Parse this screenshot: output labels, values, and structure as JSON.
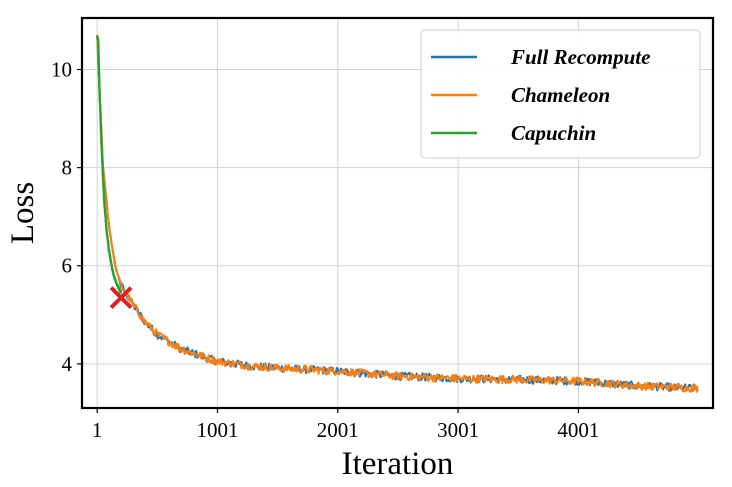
{
  "chart_data": {
    "type": "line",
    "title": "",
    "xlabel": "Iteration",
    "ylabel": "Loss",
    "xlim": [
      -125,
      5120
    ],
    "ylim": [
      3.1,
      11.05
    ],
    "xticks": [
      1,
      1001,
      2001,
      3001,
      4001
    ],
    "xtick_labels": [
      "1",
      "1001",
      "2001",
      "3001",
      "4001"
    ],
    "yticks": [
      4,
      6,
      8,
      10
    ],
    "ytick_labels": [
      "4",
      "6",
      "8",
      "10"
    ],
    "grid": true,
    "legend": {
      "position": "top-right"
    },
    "series": [
      {
        "name": "Full Recompute",
        "color": "#1f77b4",
        "x": [
          1,
          20,
          50,
          100,
          150,
          200,
          250,
          300,
          400,
          500,
          700,
          1001,
          1300,
          1600,
          2001,
          2500,
          3001,
          3500,
          4001,
          4500,
          5000
        ],
        "y": [
          10.7,
          9.6,
          8.0,
          6.8,
          6.0,
          5.6,
          5.4,
          5.2,
          4.85,
          4.6,
          4.3,
          4.05,
          3.95,
          3.9,
          3.85,
          3.75,
          3.7,
          3.68,
          3.65,
          3.55,
          3.5
        ]
      },
      {
        "name": "Chameleon",
        "color": "#ff7f0e",
        "x": [
          1,
          20,
          50,
          100,
          150,
          200,
          250,
          300,
          400,
          500,
          700,
          1001,
          1300,
          1600,
          2001,
          2500,
          3001,
          3500,
          4001,
          4500,
          5000
        ],
        "y": [
          10.7,
          9.6,
          8.0,
          6.8,
          6.0,
          5.6,
          5.4,
          5.2,
          4.85,
          4.6,
          4.3,
          4.05,
          3.95,
          3.9,
          3.85,
          3.75,
          3.7,
          3.68,
          3.65,
          3.55,
          3.5
        ]
      },
      {
        "name": "Capuchin",
        "color": "#2ca02c",
        "x": [
          1,
          10,
          20,
          40,
          60,
          80,
          100,
          120,
          140,
          160,
          180,
          200
        ],
        "y": [
          10.7,
          10.6,
          9.6,
          8.3,
          7.3,
          6.7,
          6.3,
          6.0,
          5.8,
          5.65,
          5.55,
          5.45
        ]
      }
    ],
    "marker": {
      "x": 200,
      "y": 5.35,
      "symbol": "x",
      "color": "#e02020"
    }
  }
}
